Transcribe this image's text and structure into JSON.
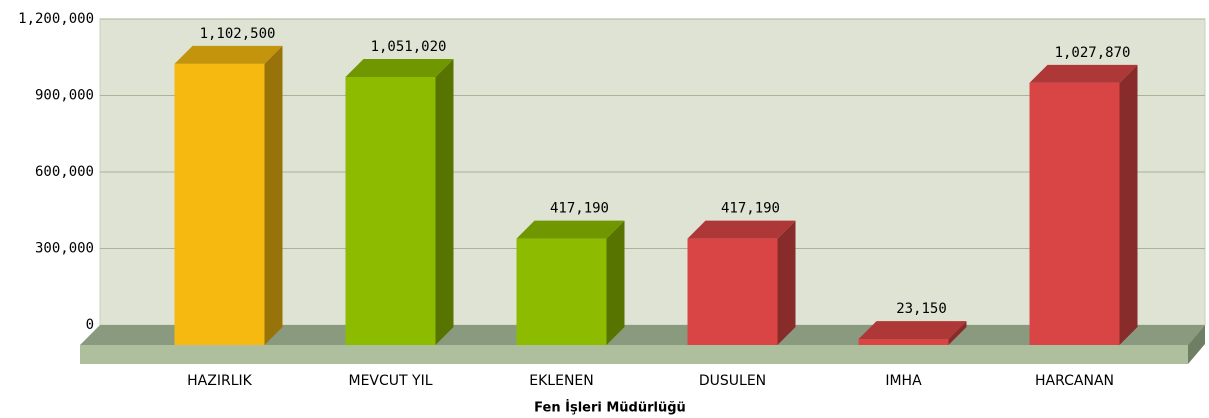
{
  "chart_data": {
    "type": "bar3d",
    "x_label": "Fen İşleri Müdürlüğü",
    "categories": [
      "HAZIRLIK",
      "MEVCUT YIL",
      "EKLENEN",
      "DUSULEN",
      "IMHA",
      "HARCANAN"
    ],
    "values": [
      1102500,
      1051020,
      417190,
      417190,
      23150,
      1027870
    ],
    "value_labels": [
      "1,102,500",
      "1,051,020",
      "417,190",
      "417,190",
      "23,150",
      "1,027,870"
    ],
    "colors": [
      "#f5b90f",
      "#8cbb00",
      "#8cbb00",
      "#d94545",
      "#d94545",
      "#d94545"
    ],
    "ylim": [
      0,
      1200000
    ],
    "yticks": [
      0,
      {
        "value": 300000,
        "label": "300,000"
      },
      {
        "value": 600000,
        "label": "600,000"
      },
      {
        "value": 900000,
        "label": "900,000"
      },
      {
        "value": 1200000,
        "label": "1,200,000"
      }
    ],
    "grid": true
  }
}
